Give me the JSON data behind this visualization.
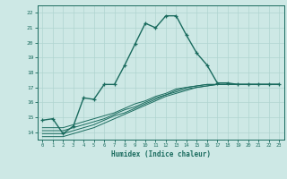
{
  "xlabel": "Humidex (Indice chaleur)",
  "bg_color": "#cde8e5",
  "grid_color": "#b0d4d0",
  "line_color": "#1a6b5e",
  "xlim": [
    -0.5,
    23.5
  ],
  "ylim": [
    13.5,
    22.5
  ],
  "xticks": [
    0,
    1,
    2,
    3,
    4,
    5,
    6,
    7,
    8,
    9,
    10,
    11,
    12,
    13,
    14,
    15,
    16,
    17,
    18,
    19,
    20,
    21,
    22,
    23
  ],
  "yticks": [
    14,
    15,
    16,
    17,
    18,
    19,
    20,
    21,
    22
  ],
  "main_x": [
    0,
    1,
    2,
    3,
    4,
    5,
    6,
    7,
    8,
    9,
    10,
    11,
    12,
    13,
    14,
    15,
    16,
    17,
    18,
    19,
    20,
    21,
    22,
    23
  ],
  "main_y": [
    14.8,
    14.9,
    13.9,
    14.4,
    16.3,
    16.2,
    17.2,
    17.2,
    18.5,
    19.9,
    21.3,
    21.0,
    21.8,
    21.8,
    20.5,
    19.3,
    18.5,
    17.3,
    17.3,
    17.2,
    17.2,
    17.2,
    17.2,
    17.2
  ],
  "line2_x": [
    0,
    1,
    2,
    3,
    4,
    5,
    6,
    7,
    8,
    9,
    10,
    11,
    12,
    13,
    14,
    15,
    16,
    17,
    18,
    19,
    20,
    21,
    22,
    23
  ],
  "line2_y": [
    14.3,
    14.3,
    14.3,
    14.5,
    14.7,
    14.9,
    15.1,
    15.3,
    15.6,
    15.9,
    16.1,
    16.4,
    16.6,
    16.9,
    17.0,
    17.1,
    17.2,
    17.2,
    17.2,
    17.2,
    17.2,
    17.2,
    17.2,
    17.2
  ],
  "line3_x": [
    0,
    1,
    2,
    3,
    4,
    5,
    6,
    7,
    8,
    9,
    10,
    11,
    12,
    13,
    14,
    15,
    16,
    17,
    18,
    19,
    20,
    21,
    22,
    23
  ],
  "line3_y": [
    14.1,
    14.1,
    14.1,
    14.3,
    14.5,
    14.7,
    14.9,
    15.2,
    15.5,
    15.7,
    16.0,
    16.3,
    16.5,
    16.8,
    17.0,
    17.1,
    17.2,
    17.2,
    17.2,
    17.2,
    17.2,
    17.2,
    17.2,
    17.2
  ],
  "line4_x": [
    0,
    1,
    2,
    3,
    4,
    5,
    6,
    7,
    8,
    9,
    10,
    11,
    12,
    13,
    14,
    15,
    16,
    17,
    18,
    19,
    20,
    21,
    22,
    23
  ],
  "line4_y": [
    13.9,
    13.9,
    13.9,
    14.1,
    14.3,
    14.5,
    14.8,
    15.1,
    15.3,
    15.6,
    15.9,
    16.2,
    16.5,
    16.7,
    16.9,
    17.0,
    17.1,
    17.2,
    17.2,
    17.2,
    17.2,
    17.2,
    17.2,
    17.2
  ],
  "line5_x": [
    0,
    1,
    2,
    3,
    4,
    5,
    6,
    7,
    8,
    9,
    10,
    11,
    12,
    13,
    14,
    15,
    16,
    17,
    18,
    19,
    20,
    21,
    22,
    23
  ],
  "line5_y": [
    13.7,
    13.7,
    13.7,
    13.9,
    14.1,
    14.3,
    14.6,
    14.9,
    15.2,
    15.5,
    15.8,
    16.1,
    16.4,
    16.6,
    16.8,
    17.0,
    17.1,
    17.2,
    17.2,
    17.2,
    17.2,
    17.2,
    17.2,
    17.2
  ]
}
